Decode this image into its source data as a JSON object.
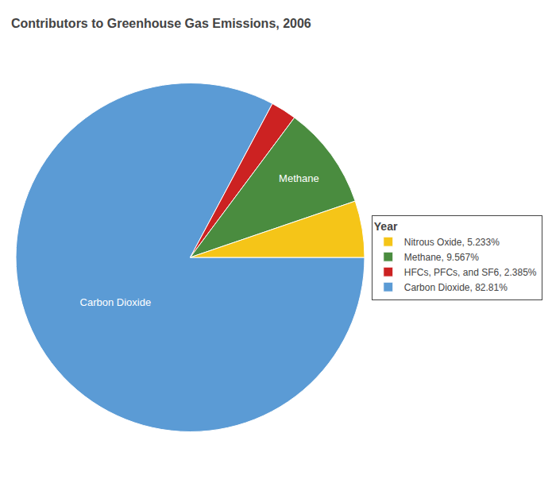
{
  "chart_data": {
    "type": "pie",
    "title": "Contributors to Greenhouse Gas Emissions, 2006",
    "legend_title": "Year",
    "categories": [
      "Carbon Dioxide, 82.81%",
      "HFCs, PFCs, and SF6, 2.385%",
      "Methane, 9.567%",
      "Nitrous Oxide, 5.233%"
    ],
    "values": [
      82.81,
      2.385,
      9.567,
      5.233
    ],
    "colors": [
      "#5b9bd5",
      "#cc2222",
      "#4a8c3f",
      "#f5c518"
    ],
    "slice_labels": [
      "Carbon Dioxide",
      null,
      "Methane",
      null
    ],
    "legend": "right"
  }
}
